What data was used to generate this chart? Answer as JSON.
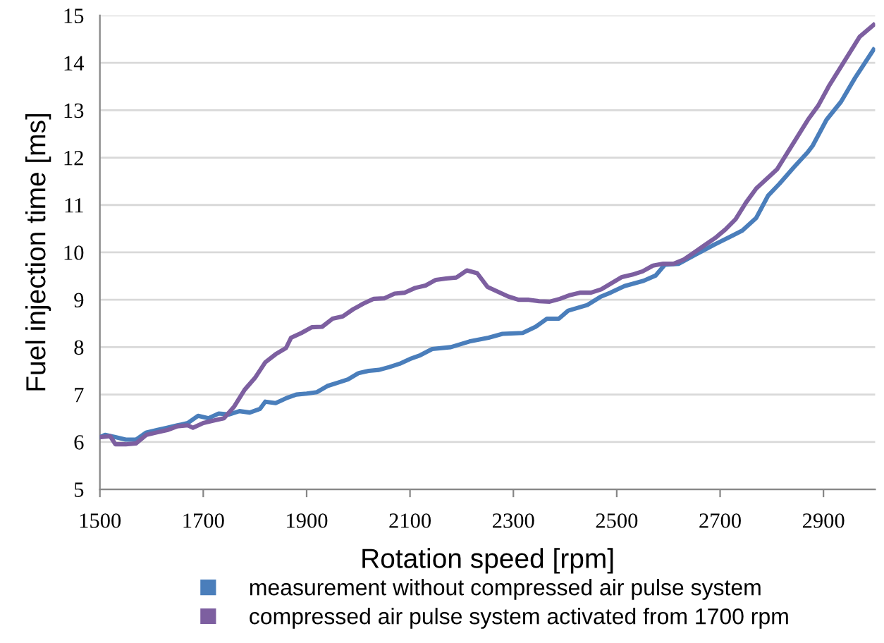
{
  "chart_data": {
    "type": "line",
    "xlabel": "Rotation speed [rpm]",
    "ylabel": "Fuel injection time [ms]",
    "xlim": [
      1500,
      3000
    ],
    "xticks": [
      1500,
      1700,
      1900,
      2100,
      2300,
      2500,
      2700,
      2900
    ],
    "ylim": [
      5,
      15
    ],
    "yticks": [
      5,
      6,
      7,
      8,
      9,
      10,
      11,
      12,
      13,
      14,
      15
    ],
    "grid": "y",
    "legend": "bottom",
    "marker": "none",
    "line_style": "solid",
    "series": [
      {
        "name": "measurement without compressed air pulse system",
        "color": "#4a7ebb",
        "x": [
          1500,
          1510,
          1530,
          1550,
          1570,
          1590,
          1610,
          1630,
          1650,
          1670,
          1690,
          1710,
          1730,
          1750,
          1770,
          1790,
          1810,
          1820,
          1840,
          1860,
          1880,
          1900,
          1920,
          1940,
          1960,
          1980,
          2000,
          2020,
          2040,
          2060,
          2080,
          2100,
          2120,
          2143,
          2179,
          2215,
          2252,
          2279,
          2318,
          2343,
          2365,
          2388,
          2406,
          2443,
          2470,
          2488,
          2515,
          2552,
          2575,
          2593,
          2620,
          2652,
          2688,
          2725,
          2743,
          2770,
          2793,
          2815,
          2843,
          2870,
          2879,
          2906,
          2934,
          2961,
          2997
        ],
        "values": [
          6.1,
          6.15,
          6.1,
          6.05,
          6.05,
          6.2,
          6.25,
          6.3,
          6.35,
          6.4,
          6.55,
          6.5,
          6.6,
          6.58,
          6.65,
          6.62,
          6.7,
          6.85,
          6.82,
          6.92,
          7.0,
          7.02,
          7.05,
          7.18,
          7.25,
          7.32,
          7.45,
          7.5,
          7.52,
          7.58,
          7.65,
          7.75,
          7.83,
          7.96,
          8.0,
          8.12,
          8.2,
          8.28,
          8.3,
          8.43,
          8.6,
          8.6,
          8.77,
          8.89,
          9.07,
          9.15,
          9.29,
          9.4,
          9.51,
          9.74,
          9.76,
          9.95,
          10.16,
          10.36,
          10.46,
          10.73,
          11.2,
          11.45,
          11.8,
          12.12,
          12.25,
          12.8,
          13.18,
          13.68,
          14.28
        ]
      },
      {
        "name": "compressed air pulse system activated from 1700 rpm",
        "color": "#7d5fa0",
        "x": [
          1500,
          1520,
          1530,
          1550,
          1570,
          1590,
          1610,
          1630,
          1650,
          1670,
          1680,
          1700,
          1720,
          1740,
          1760,
          1780,
          1800,
          1820,
          1840,
          1860,
          1870,
          1890,
          1910,
          1930,
          1950,
          1970,
          1990,
          2010,
          2030,
          2050,
          2070,
          2090,
          2110,
          2130,
          2150,
          2170,
          2190,
          2210,
          2230,
          2250,
          2270,
          2290,
          2310,
          2330,
          2350,
          2370,
          2390,
          2410,
          2430,
          2450,
          2470,
          2490,
          2510,
          2530,
          2550,
          2570,
          2590,
          2610,
          2630,
          2650,
          2670,
          2690,
          2710,
          2730,
          2750,
          2770,
          2790,
          2810,
          2830,
          2850,
          2870,
          2890,
          2910,
          2930,
          2950,
          2970,
          2997
        ],
        "values": [
          6.1,
          6.12,
          5.95,
          5.95,
          5.97,
          6.15,
          6.2,
          6.25,
          6.33,
          6.35,
          6.3,
          6.4,
          6.45,
          6.5,
          6.75,
          7.1,
          7.35,
          7.68,
          7.85,
          7.98,
          8.2,
          8.3,
          8.42,
          8.43,
          8.6,
          8.65,
          8.8,
          8.92,
          9.02,
          9.03,
          9.13,
          9.15,
          9.25,
          9.3,
          9.42,
          9.45,
          9.47,
          9.62,
          9.56,
          9.27,
          9.17,
          9.07,
          9.0,
          9.0,
          8.97,
          8.96,
          9.02,
          9.1,
          9.15,
          9.15,
          9.22,
          9.35,
          9.48,
          9.53,
          9.6,
          9.72,
          9.76,
          9.76,
          9.85,
          10.0,
          10.15,
          10.3,
          10.48,
          10.7,
          11.05,
          11.35,
          11.55,
          11.75,
          12.1,
          12.45,
          12.8,
          13.1,
          13.5,
          13.85,
          14.2,
          14.55,
          14.8
        ]
      }
    ]
  }
}
